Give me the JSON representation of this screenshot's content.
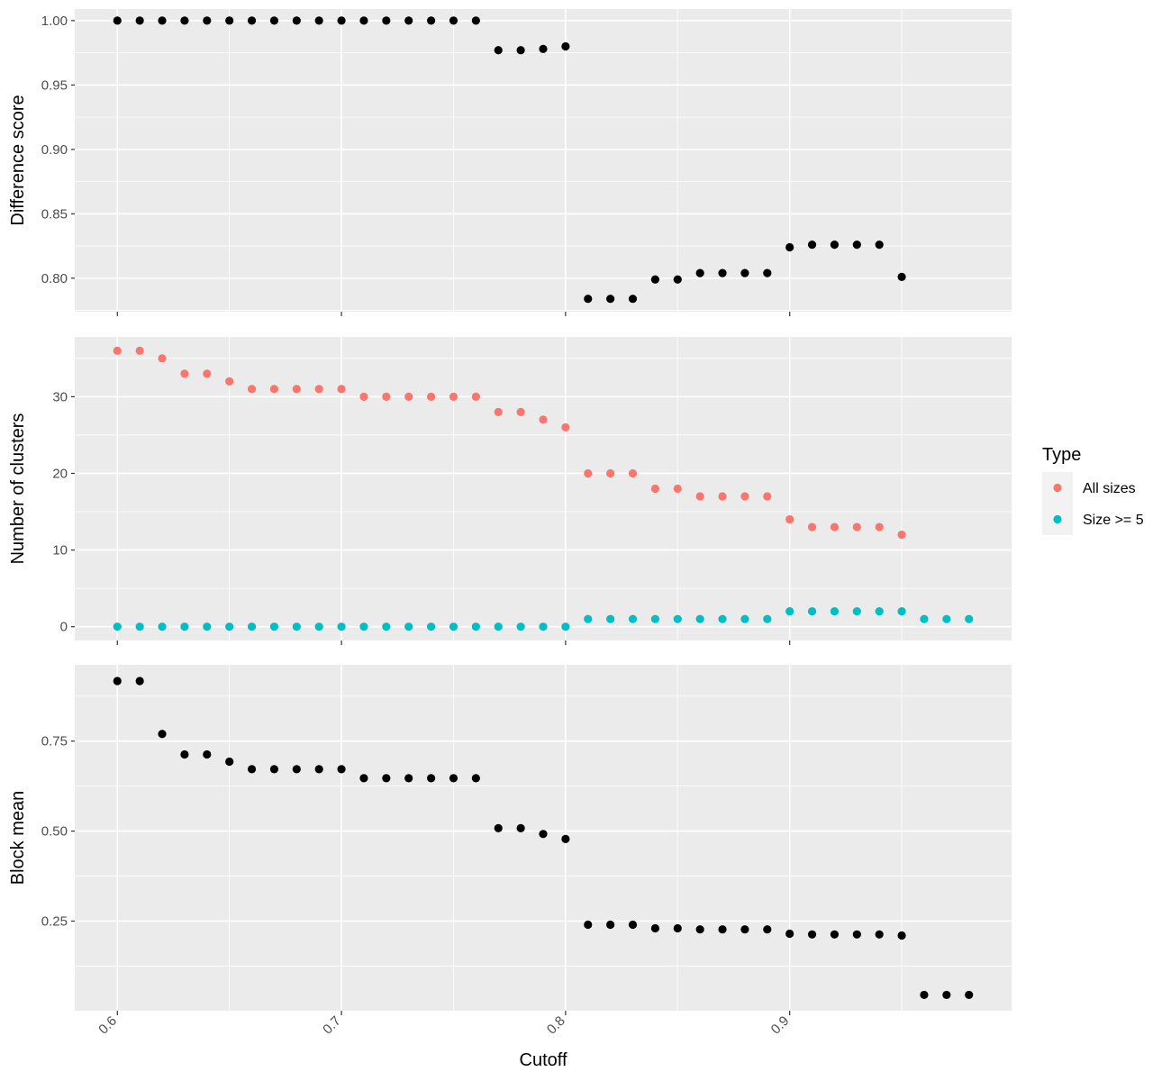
{
  "chart_data": [
    {
      "type": "scatter",
      "panel": "top",
      "ylabel": "Difference score",
      "xlabel": "",
      "xlim": [
        0.581,
        0.999
      ],
      "ylim": [
        0.774,
        1.009
      ],
      "x_ticks": [
        0.6,
        0.7,
        0.8,
        0.9
      ],
      "x_ticks_labeled": false,
      "y_ticks": [
        0.8,
        0.85,
        0.9,
        0.95,
        1.0
      ],
      "y_tick_labels": [
        "0.80",
        "0.85",
        "0.90",
        "0.95",
        "1.00"
      ],
      "grid": true,
      "series": [
        {
          "color": "#000000",
          "x": [
            0.6,
            0.61,
            0.62,
            0.63,
            0.64,
            0.65,
            0.66,
            0.67,
            0.68,
            0.69,
            0.7,
            0.71,
            0.72,
            0.73,
            0.74,
            0.75,
            0.76,
            0.77,
            0.78,
            0.79,
            0.8,
            0.81,
            0.82,
            0.83,
            0.84,
            0.85,
            0.86,
            0.87,
            0.88,
            0.89,
            0.9,
            0.91,
            0.92,
            0.93,
            0.94,
            0.95
          ],
          "y": [
            1.0,
            1.0,
            1.0,
            1.0,
            1.0,
            1.0,
            1.0,
            1.0,
            1.0,
            1.0,
            1.0,
            1.0,
            1.0,
            1.0,
            1.0,
            1.0,
            1.0,
            0.977,
            0.977,
            0.978,
            0.98,
            0.784,
            0.784,
            0.784,
            0.799,
            0.799,
            0.804,
            0.804,
            0.804,
            0.804,
            0.824,
            0.826,
            0.826,
            0.826,
            0.826,
            0.801
          ]
        }
      ]
    },
    {
      "type": "scatter",
      "panel": "middle",
      "ylabel": "Number of clusters",
      "xlabel": "",
      "xlim": [
        0.581,
        0.999
      ],
      "ylim": [
        -1.8,
        37.8
      ],
      "x_ticks": [
        0.6,
        0.7,
        0.8,
        0.9
      ],
      "x_ticks_labeled": false,
      "y_ticks": [
        0,
        10,
        20,
        30
      ],
      "y_tick_labels": [
        "0",
        "10",
        "20",
        "30"
      ],
      "grid": true,
      "legend": {
        "title": "Type",
        "placement": "right",
        "entries": [
          {
            "label": "All sizes",
            "color": "#F8766D"
          },
          {
            "label": "Size >= 5",
            "color": "#00BFC4"
          }
        ]
      },
      "series": [
        {
          "name": "All sizes",
          "color": "#F8766D",
          "x": [
            0.6,
            0.61,
            0.62,
            0.63,
            0.64,
            0.65,
            0.66,
            0.67,
            0.68,
            0.69,
            0.7,
            0.71,
            0.72,
            0.73,
            0.74,
            0.75,
            0.76,
            0.77,
            0.78,
            0.79,
            0.8,
            0.81,
            0.82,
            0.83,
            0.84,
            0.85,
            0.86,
            0.87,
            0.88,
            0.89,
            0.9,
            0.91,
            0.92,
            0.93,
            0.94,
            0.95
          ],
          "y": [
            36,
            36,
            35,
            33,
            33,
            32,
            31,
            31,
            31,
            31,
            31,
            30,
            30,
            30,
            30,
            30,
            30,
            28,
            28,
            27,
            26,
            20,
            20,
            20,
            18,
            18,
            17,
            17,
            17,
            17,
            14,
            13,
            13,
            13,
            13,
            12
          ]
        },
        {
          "name": "Size >= 5",
          "color": "#00BFC4",
          "x": [
            0.6,
            0.61,
            0.62,
            0.63,
            0.64,
            0.65,
            0.66,
            0.67,
            0.68,
            0.69,
            0.7,
            0.71,
            0.72,
            0.73,
            0.74,
            0.75,
            0.76,
            0.77,
            0.78,
            0.79,
            0.8,
            0.81,
            0.82,
            0.83,
            0.84,
            0.85,
            0.86,
            0.87,
            0.88,
            0.89,
            0.9,
            0.91,
            0.92,
            0.93,
            0.94,
            0.95,
            0.96,
            0.97,
            0.98
          ],
          "y": [
            0,
            0,
            0,
            0,
            0,
            0,
            0,
            0,
            0,
            0,
            0,
            0,
            0,
            0,
            0,
            0,
            0,
            0,
            0,
            0,
            0,
            1,
            1,
            1,
            1,
            1,
            1,
            1,
            1,
            1,
            2,
            2,
            2,
            2,
            2,
            2,
            1,
            1,
            1
          ]
        }
      ]
    },
    {
      "type": "scatter",
      "panel": "bottom",
      "ylabel": "Block mean",
      "xlabel": "Cutoff",
      "xlim": [
        0.581,
        0.999
      ],
      "ylim": [
        0.001,
        0.962
      ],
      "x_ticks": [
        0.6,
        0.7,
        0.8,
        0.9
      ],
      "x_tick_labels": [
        "0.6",
        "0.7",
        "0.8",
        "0.9"
      ],
      "x_ticks_labeled": true,
      "y_ticks": [
        0.25,
        0.5,
        0.75
      ],
      "y_tick_labels": [
        "0.25",
        "0.50",
        "0.75"
      ],
      "grid": true,
      "series": [
        {
          "color": "#000000",
          "x": [
            0.6,
            0.61,
            0.62,
            0.63,
            0.64,
            0.65,
            0.66,
            0.67,
            0.68,
            0.69,
            0.7,
            0.71,
            0.72,
            0.73,
            0.74,
            0.75,
            0.76,
            0.77,
            0.78,
            0.79,
            0.8,
            0.81,
            0.82,
            0.83,
            0.84,
            0.85,
            0.86,
            0.87,
            0.88,
            0.89,
            0.9,
            0.91,
            0.92,
            0.93,
            0.94,
            0.95,
            0.96,
            0.97,
            0.98
          ],
          "y": [
            0.917,
            0.917,
            0.77,
            0.713,
            0.713,
            0.693,
            0.672,
            0.672,
            0.672,
            0.672,
            0.672,
            0.647,
            0.647,
            0.647,
            0.647,
            0.647,
            0.647,
            0.508,
            0.508,
            0.492,
            0.478,
            0.24,
            0.24,
            0.24,
            0.23,
            0.23,
            0.227,
            0.227,
            0.227,
            0.227,
            0.215,
            0.213,
            0.213,
            0.213,
            0.213,
            0.21,
            0.045,
            0.045,
            0.045
          ]
        }
      ]
    }
  ]
}
